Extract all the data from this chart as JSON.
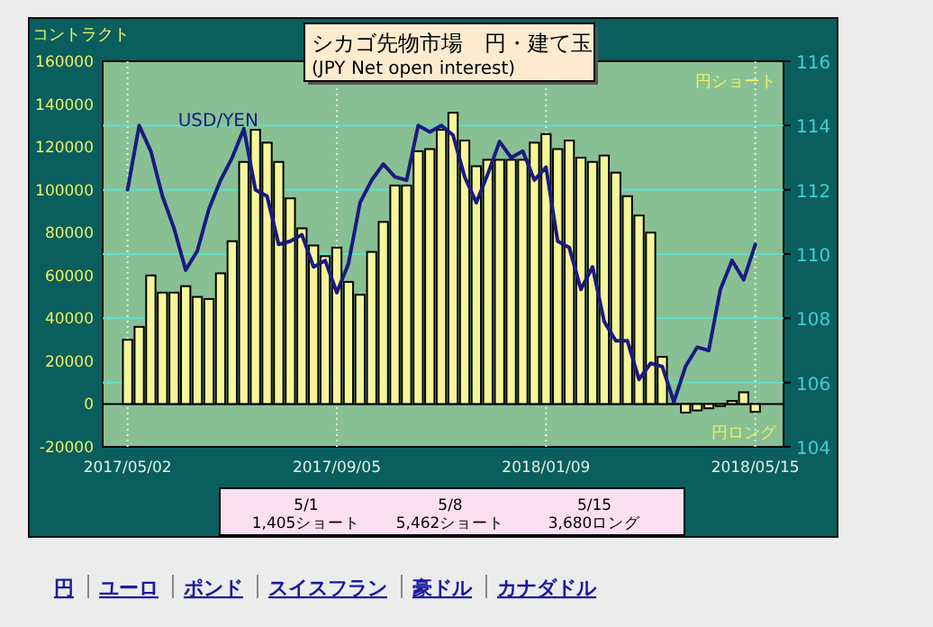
{
  "chart_data": {
    "type": "bar",
    "title": "シカゴ先物市場　円・建て玉",
    "subtitle": "(JPY Net open interest)",
    "ylabel": "コントラクト",
    "x": [
      "2017-05-02",
      "2017-05-09",
      "2017-05-16",
      "2017-05-23",
      "2017-05-30",
      "2017-06-06",
      "2017-06-13",
      "2017-06-20",
      "2017-06-27",
      "2017-07-04",
      "2017-07-11",
      "2017-07-18",
      "2017-07-25",
      "2017-08-01",
      "2017-08-08",
      "2017-08-15",
      "2017-08-22",
      "2017-08-29",
      "2017-09-05",
      "2017-09-12",
      "2017-09-19",
      "2017-09-26",
      "2017-10-03",
      "2017-10-10",
      "2017-10-17",
      "2017-10-24",
      "2017-10-31",
      "2017-11-07",
      "2017-11-14",
      "2017-11-21",
      "2017-11-28",
      "2017-12-05",
      "2017-12-12",
      "2017-12-19",
      "2017-12-26",
      "2018-01-02",
      "2018-01-09",
      "2018-01-16",
      "2018-01-23",
      "2018-01-30",
      "2018-02-06",
      "2018-02-13",
      "2018-02-20",
      "2018-02-27",
      "2018-03-06",
      "2018-03-13",
      "2018-03-20",
      "2018-03-27",
      "2018-04-03",
      "2018-04-10",
      "2018-04-17",
      "2018-04-24",
      "2018-05-01",
      "2018-05-08",
      "2018-05-15"
    ],
    "series": [
      {
        "color": "#f5f59a",
        "values": [
          30000,
          36000,
          60000,
          52000,
          52000,
          55000,
          50000,
          49000,
          61000,
          76000,
          113000,
          128000,
          122000,
          113000,
          96000,
          82000,
          74000,
          69000,
          73000,
          57000,
          51000,
          71000,
          85000,
          102000,
          102000,
          118000,
          119000,
          128000,
          136000,
          123000,
          111000,
          114000,
          114000,
          114000,
          114000,
          122000,
          126000,
          119000,
          123000,
          115000,
          113000,
          116000,
          108000,
          97000,
          88000,
          80000,
          22000,
          0,
          -4000,
          -3000,
          -2000,
          -1000,
          1405,
          5462,
          -3680
        ]
      },
      {
        "type": "line",
        "name": "USD/YEN",
        "color": "#1a1a80",
        "axis": "y2",
        "values": [
          112.0,
          114.0,
          113.2,
          111.8,
          110.8,
          109.5,
          110.1,
          111.4,
          112.3,
          113.0,
          113.9,
          112.0,
          111.8,
          110.3,
          110.4,
          110.6,
          109.6,
          109.8,
          108.8,
          109.7,
          111.6,
          112.3,
          112.8,
          112.4,
          112.3,
          114.0,
          113.8,
          114.0,
          113.7,
          112.4,
          111.6,
          112.5,
          113.5,
          113.0,
          113.2,
          112.3,
          112.7,
          110.4,
          110.2,
          108.9,
          109.6,
          107.9,
          107.3,
          107.3,
          106.1,
          106.6,
          106.5,
          105.4,
          106.5,
          107.1,
          107.0,
          108.9,
          109.8,
          109.2,
          110.3
        ]
      }
    ],
    "xlim": [
      "2017-04-17",
      "2018-06-01"
    ],
    "xticks": [
      {
        "value": "2017-05-02",
        "label": "2017/05/02"
      },
      {
        "value": "2017-09-05",
        "label": "2017/09/05"
      },
      {
        "value": "2018-01-09",
        "label": "2018/01/09"
      },
      {
        "value": "2018-05-15",
        "label": "2018/05/15"
      }
    ],
    "ylim": [
      -20000,
      160000
    ],
    "yticks": [
      -20000,
      0,
      20000,
      40000,
      60000,
      80000,
      100000,
      120000,
      140000,
      160000
    ],
    "y2lim": [
      104,
      116
    ],
    "y2ticks": [
      104,
      106,
      108,
      110,
      112,
      114,
      116
    ],
    "grid": true,
    "annotations": [
      "円ショート",
      "円ロング",
      "5/1",
      "1,405ショート",
      "5/8",
      "5,462ショート",
      "5/15",
      "3,680ロング",
      "円",
      "ユーロ",
      "ポンド",
      "スイスフラン",
      "豪ドル",
      "カナダドル"
    ]
  }
}
